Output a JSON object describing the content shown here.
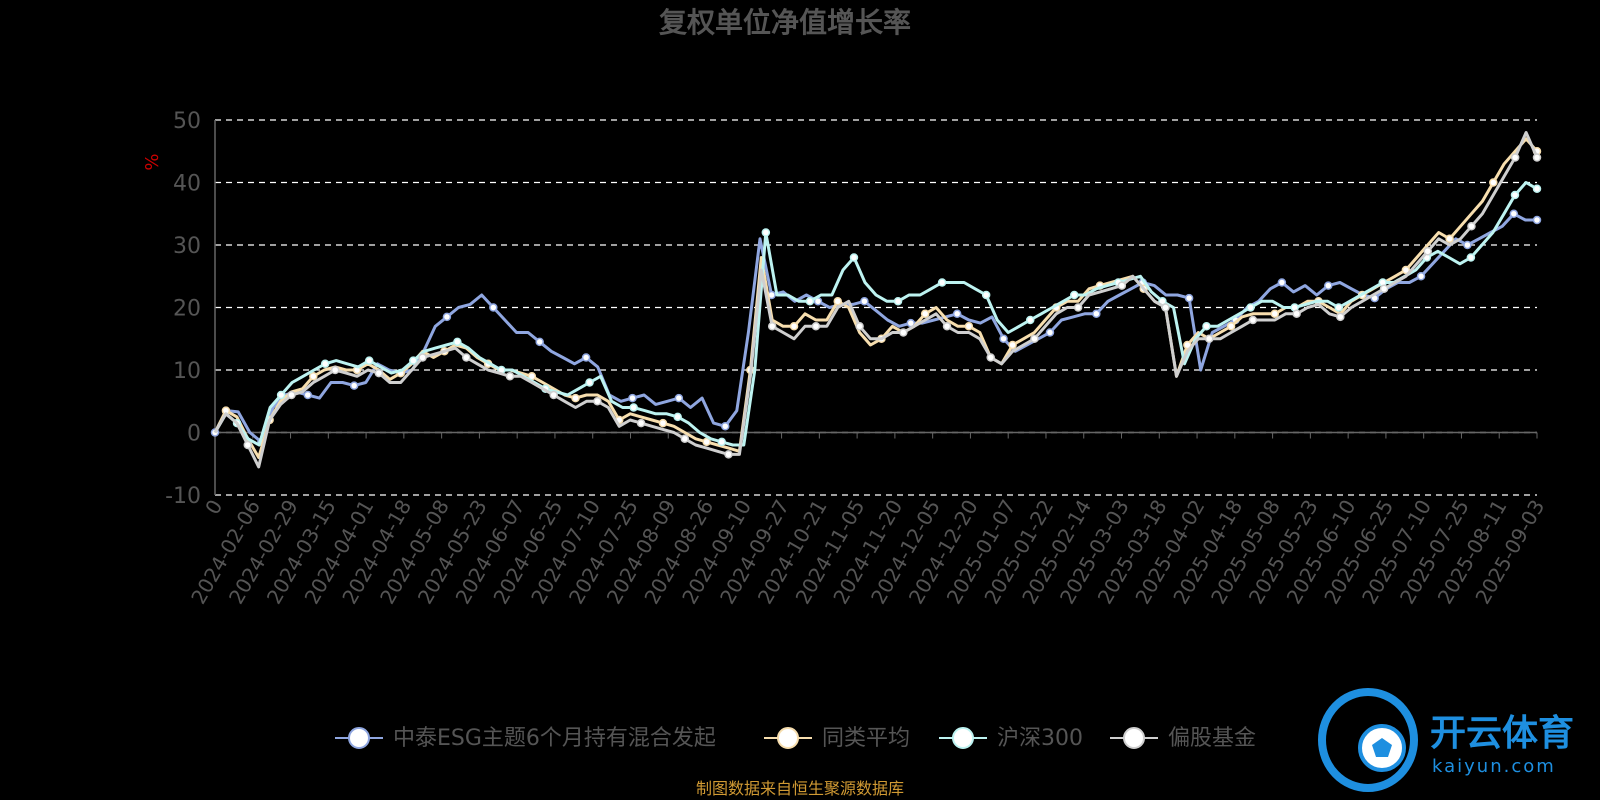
{
  "chart_data": {
    "type": "line",
    "title": "复权单位净值增长率",
    "ylabel": "%",
    "ylim": [
      -10,
      50
    ],
    "yticks": [
      -10,
      0,
      10,
      20,
      30,
      40,
      50
    ],
    "grid": true,
    "legend_position": "bottom",
    "x_tick_labels": [
      "0",
      "2024-02-06",
      "2024-02-29",
      "2024-03-15",
      "2024-04-01",
      "2024-04-18",
      "2024-05-08",
      "2024-05-23",
      "2024-06-07",
      "2024-06-25",
      "2024-07-10",
      "2024-07-25",
      "2024-08-09",
      "2024-08-26",
      "2024-09-10",
      "2024-09-27",
      "2024-10-21",
      "2024-11-05",
      "2024-11-20",
      "2024-12-05",
      "2024-12-20",
      "2025-01-07",
      "2025-01-22",
      "2025-02-14",
      "2025-03-03",
      "2025-03-18",
      "2025-04-02",
      "2025-04-18",
      "2025-05-08",
      "2025-05-23",
      "2025-06-10",
      "2025-06-25",
      "2025-07-10",
      "2025-07-25",
      "2025-08-11",
      "2025-09-03"
    ],
    "series": [
      {
        "name": "中泰ESG主题6个月持有混合发起",
        "color": "#8fa6e0",
        "values": [
          0,
          3.5,
          3.3,
          0,
          -1.5,
          4,
          6,
          6.5,
          6,
          5.5,
          8,
          8,
          7.5,
          8,
          11,
          10,
          9.5,
          10,
          13,
          17,
          18.5,
          20,
          20.5,
          22,
          20,
          18,
          16,
          16,
          14.5,
          13,
          12,
          11,
          12,
          10.5,
          6,
          5,
          5.5,
          6,
          4.5,
          5,
          5.5,
          4,
          5.5,
          1.5,
          1,
          3.5,
          16,
          31,
          22,
          22.5,
          21,
          22,
          21,
          20,
          20.5,
          20.5,
          21,
          19.5,
          18,
          17,
          17.5,
          17.5,
          18,
          18.5,
          19,
          18,
          17.5,
          18.5,
          15,
          13,
          14,
          15,
          16,
          18,
          18.5,
          19,
          19,
          21,
          22,
          23,
          24,
          23.5,
          22,
          22,
          21.5,
          10,
          16,
          17,
          18,
          20,
          21,
          23,
          24,
          22.5,
          23.5,
          22,
          23.5,
          24,
          23,
          22,
          21.5,
          23,
          24,
          24,
          25,
          27,
          29,
          31,
          30,
          31,
          32,
          33,
          35,
          34,
          34
        ]
      },
      {
        "name": "同类平均",
        "color": "#f7deae",
        "values": [
          0,
          3.5,
          2.5,
          -1,
          -4,
          2,
          5,
          6.5,
          7,
          9,
          10,
          10.5,
          10,
          10,
          11,
          10,
          8.5,
          9.5,
          11,
          13,
          12,
          13,
          14,
          13.5,
          12,
          11,
          10,
          10,
          9.5,
          9,
          8,
          7,
          6,
          5.5,
          6,
          6,
          5,
          2,
          3,
          2.5,
          2,
          1.5,
          1,
          0,
          -1,
          -1.5,
          -2,
          -2.5,
          -3,
          10,
          28,
          18,
          17,
          17,
          19,
          18,
          18,
          21,
          20,
          16,
          14,
          15,
          17,
          16,
          17,
          19,
          20,
          18,
          17,
          17,
          16,
          12,
          11,
          14,
          15,
          16,
          18,
          20,
          21,
          21,
          23,
          23.5,
          24,
          24.5,
          25,
          23,
          21,
          20,
          9,
          14,
          16,
          15,
          16,
          17,
          18.5,
          19,
          19,
          19,
          20,
          20,
          21,
          21,
          20,
          19,
          21,
          22,
          23,
          24,
          25,
          26,
          28,
          30,
          32,
          31,
          33,
          35,
          37,
          40,
          43,
          45,
          47,
          45
        ]
      },
      {
        "name": "沪深300",
        "color": "#bdf3f1",
        "values": [
          0,
          3,
          1.5,
          -1,
          -2,
          4,
          6,
          8,
          9,
          10,
          11,
          11.5,
          11,
          10.5,
          11.5,
          10.5,
          9.5,
          10,
          11.5,
          13,
          13.5,
          14,
          14.5,
          13.5,
          12,
          11,
          10,
          10,
          9,
          8,
          7,
          6.5,
          6,
          7,
          8,
          9,
          5,
          4,
          4,
          3.5,
          3,
          3,
          2.5,
          1.5,
          0,
          -1,
          -1.5,
          -2,
          -2,
          10,
          32,
          22,
          22,
          21,
          21,
          22,
          22,
          26,
          28,
          24,
          22,
          21,
          21,
          22,
          22,
          23,
          24,
          24,
          24,
          23,
          22,
          18,
          16,
          17,
          18,
          19,
          20,
          21,
          22,
          22,
          23,
          23.5,
          24,
          24.5,
          25,
          22.5,
          21,
          20,
          11,
          15,
          17,
          17,
          18,
          19,
          20,
          21,
          21,
          20,
          20,
          20.5,
          21,
          21,
          20,
          21,
          22,
          23,
          24,
          24,
          25,
          26,
          28,
          29,
          28,
          27,
          28,
          30,
          32,
          35,
          38,
          40,
          39
        ]
      },
      {
        "name": "偏股基金",
        "color": "#cfcfcf",
        "values": [
          0,
          3,
          1.5,
          -2,
          -5.5,
          2,
          4.5,
          6,
          6.5,
          8,
          9,
          10,
          9.5,
          9,
          10,
          9.5,
          8,
          8,
          10,
          12,
          12.5,
          13,
          13.5,
          12,
          11,
          10,
          9.5,
          9,
          9,
          8,
          7,
          6,
          5,
          4,
          5,
          5,
          4,
          1,
          2,
          1.5,
          1,
          0.5,
          0,
          -1,
          -2,
          -2.5,
          -3,
          -3.5,
          -3.5,
          9,
          26,
          17,
          16,
          15,
          17,
          17,
          17,
          20,
          21,
          17,
          15,
          15,
          16,
          16,
          17,
          18,
          19,
          17,
          16,
          16,
          15,
          12,
          11,
          13,
          14,
          15,
          17,
          19,
          20,
          20,
          22,
          22.5,
          23,
          23.5,
          25,
          23,
          21,
          20,
          9,
          13,
          15,
          15,
          15,
          16,
          17,
          18,
          18,
          18,
          19,
          19,
          20,
          20.5,
          19,
          18.5,
          20,
          21,
          22,
          23,
          24,
          25,
          27,
          29,
          31,
          30,
          31,
          33,
          35,
          38,
          41,
          44,
          48,
          44
        ]
      }
    ]
  },
  "legend": {
    "item_1": "中泰ESG主题6个月持有混合发起",
    "item_2": "同类平均",
    "item_3": "沪深300",
    "item_4": "偏股基金"
  },
  "source_note": "制图数据来自恒生聚源数据库",
  "watermark": {
    "brand": "开云体育",
    "url": "kaiyun.com"
  }
}
